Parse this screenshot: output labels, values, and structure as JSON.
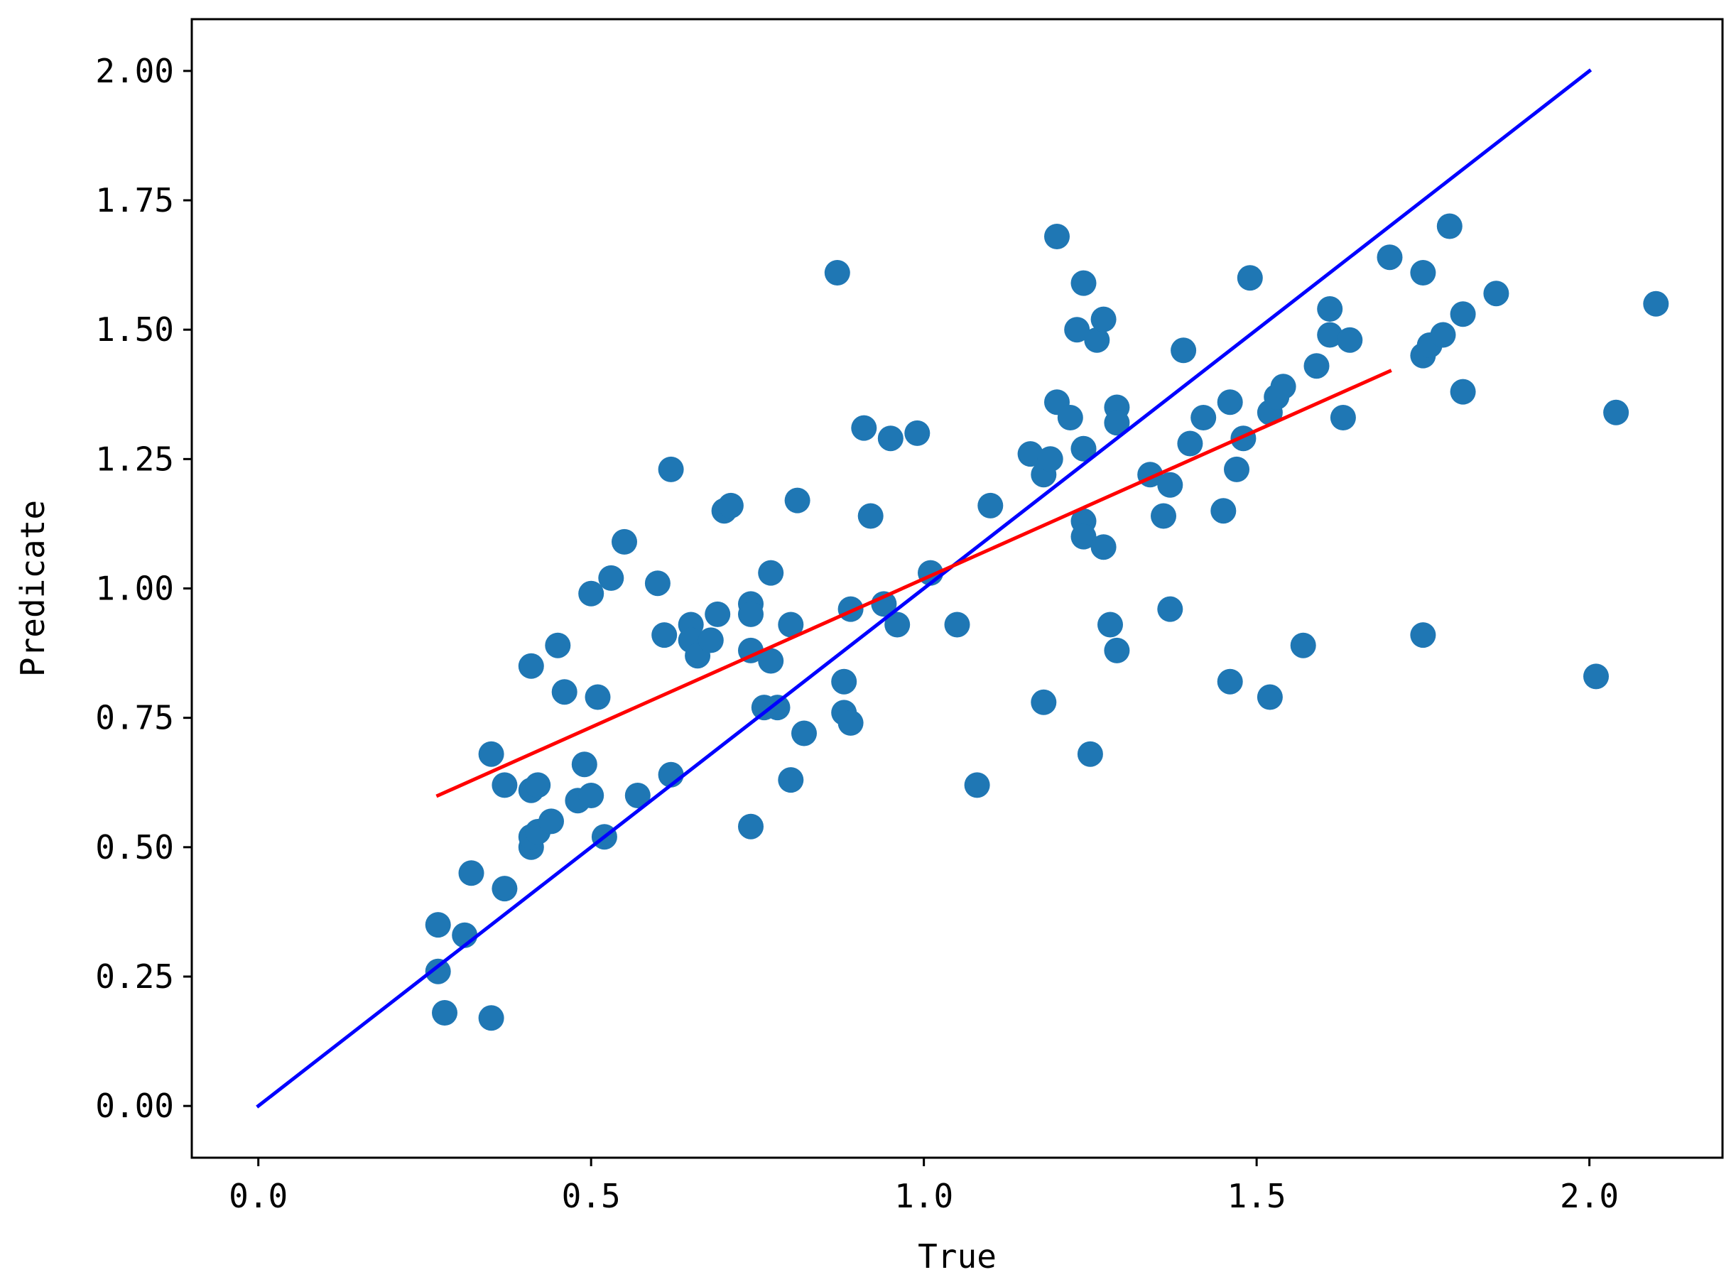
{
  "chart_data": {
    "type": "scatter",
    "xlabel": "True",
    "ylabel": "Predicate",
    "xlim": [
      -0.1,
      2.2
    ],
    "ylim": [
      -0.1,
      2.1
    ],
    "x_ticks": [
      "0.0",
      "0.5",
      "1.0",
      "1.5",
      "2.0"
    ],
    "x_tick_values": [
      0.0,
      0.5,
      1.0,
      1.5,
      2.0
    ],
    "y_ticks": [
      "0.00",
      "0.25",
      "0.50",
      "0.75",
      "1.00",
      "1.25",
      "1.50",
      "1.75",
      "2.00"
    ],
    "y_tick_values": [
      0.0,
      0.25,
      0.5,
      0.75,
      1.0,
      1.25,
      1.5,
      1.75,
      2.0
    ],
    "grid": false,
    "colors": {
      "points": "#1f77b4",
      "identity_line": "#0000ff",
      "fit_line": "#ff0000"
    },
    "series": [
      {
        "type": "scatter",
        "points": [
          [
            0.27,
            0.35
          ],
          [
            0.27,
            0.26
          ],
          [
            0.28,
            0.18
          ],
          [
            0.31,
            0.33
          ],
          [
            0.32,
            0.45
          ],
          [
            0.35,
            0.17
          ],
          [
            0.35,
            0.68
          ],
          [
            0.37,
            0.42
          ],
          [
            0.37,
            0.62
          ],
          [
            0.41,
            0.5
          ],
          [
            0.41,
            0.52
          ],
          [
            0.41,
            0.61
          ],
          [
            0.41,
            0.85
          ],
          [
            0.42,
            0.53
          ],
          [
            0.42,
            0.62
          ],
          [
            0.44,
            0.55
          ],
          [
            0.45,
            0.89
          ],
          [
            0.46,
            0.8
          ],
          [
            0.48,
            0.59
          ],
          [
            0.49,
            0.66
          ],
          [
            0.5,
            0.6
          ],
          [
            0.5,
            0.99
          ],
          [
            0.51,
            0.79
          ],
          [
            0.52,
            0.52
          ],
          [
            0.53,
            1.02
          ],
          [
            0.55,
            1.09
          ],
          [
            0.57,
            0.6
          ],
          [
            0.6,
            1.01
          ],
          [
            0.61,
            0.91
          ],
          [
            0.62,
            0.64
          ],
          [
            0.62,
            1.23
          ],
          [
            0.65,
            0.93
          ],
          [
            0.65,
            0.9
          ],
          [
            0.66,
            0.87
          ],
          [
            0.68,
            0.9
          ],
          [
            0.69,
            0.95
          ],
          [
            0.7,
            1.15
          ],
          [
            0.71,
            1.16
          ],
          [
            0.74,
            0.97
          ],
          [
            0.74,
            0.95
          ],
          [
            0.74,
            0.88
          ],
          [
            0.74,
            0.54
          ],
          [
            0.76,
            0.77
          ],
          [
            0.77,
            1.03
          ],
          [
            0.77,
            0.86
          ],
          [
            0.78,
            0.77
          ],
          [
            0.8,
            0.93
          ],
          [
            0.8,
            0.63
          ],
          [
            0.81,
            1.17
          ],
          [
            0.82,
            0.72
          ],
          [
            0.87,
            1.61
          ],
          [
            0.88,
            0.82
          ],
          [
            0.88,
            0.76
          ],
          [
            0.89,
            0.74
          ],
          [
            0.89,
            0.96
          ],
          [
            0.91,
            1.31
          ],
          [
            0.92,
            1.14
          ],
          [
            0.94,
            0.97
          ],
          [
            0.95,
            1.29
          ],
          [
            0.96,
            0.93
          ],
          [
            0.99,
            1.3
          ],
          [
            1.01,
            1.03
          ],
          [
            1.05,
            0.93
          ],
          [
            1.08,
            0.62
          ],
          [
            1.1,
            1.16
          ],
          [
            1.16,
            1.26
          ],
          [
            1.18,
            1.22
          ],
          [
            1.18,
            0.78
          ],
          [
            1.19,
            1.25
          ],
          [
            1.2,
            1.36
          ],
          [
            1.2,
            1.68
          ],
          [
            1.22,
            1.33
          ],
          [
            1.23,
            1.5
          ],
          [
            1.24,
            1.59
          ],
          [
            1.24,
            1.27
          ],
          [
            1.24,
            1.13
          ],
          [
            1.24,
            1.1
          ],
          [
            1.25,
            0.68
          ],
          [
            1.26,
            1.48
          ],
          [
            1.27,
            1.08
          ],
          [
            1.27,
            1.52
          ],
          [
            1.28,
            0.93
          ],
          [
            1.29,
            0.88
          ],
          [
            1.29,
            1.35
          ],
          [
            1.29,
            1.32
          ],
          [
            1.34,
            1.22
          ],
          [
            1.36,
            1.14
          ],
          [
            1.37,
            1.2
          ],
          [
            1.37,
            0.96
          ],
          [
            1.39,
            1.46
          ],
          [
            1.4,
            1.28
          ],
          [
            1.42,
            1.33
          ],
          [
            1.45,
            1.15
          ],
          [
            1.46,
            1.36
          ],
          [
            1.46,
            0.82
          ],
          [
            1.47,
            1.23
          ],
          [
            1.48,
            1.29
          ],
          [
            1.49,
            1.6
          ],
          [
            1.52,
            0.79
          ],
          [
            1.52,
            1.34
          ],
          [
            1.53,
            1.37
          ],
          [
            1.54,
            1.39
          ],
          [
            1.57,
            0.89
          ],
          [
            1.59,
            1.43
          ],
          [
            1.61,
            1.54
          ],
          [
            1.61,
            1.49
          ],
          [
            1.63,
            1.33
          ],
          [
            1.64,
            1.48
          ],
          [
            1.7,
            1.64
          ],
          [
            1.75,
            1.61
          ],
          [
            1.75,
            1.45
          ],
          [
            1.75,
            0.91
          ],
          [
            1.76,
            1.47
          ],
          [
            1.78,
            1.49
          ],
          [
            1.79,
            1.7
          ],
          [
            1.81,
            1.53
          ],
          [
            1.81,
            1.38
          ],
          [
            1.86,
            1.57
          ],
          [
            2.01,
            0.83
          ],
          [
            2.04,
            1.34
          ],
          [
            2.1,
            1.55
          ]
        ]
      },
      {
        "type": "line",
        "x": [
          0.0,
          2.0
        ],
        "y": [
          0.0,
          2.0
        ]
      },
      {
        "type": "line",
        "x": [
          0.27,
          1.7
        ],
        "y": [
          0.6,
          1.42
        ]
      }
    ]
  }
}
